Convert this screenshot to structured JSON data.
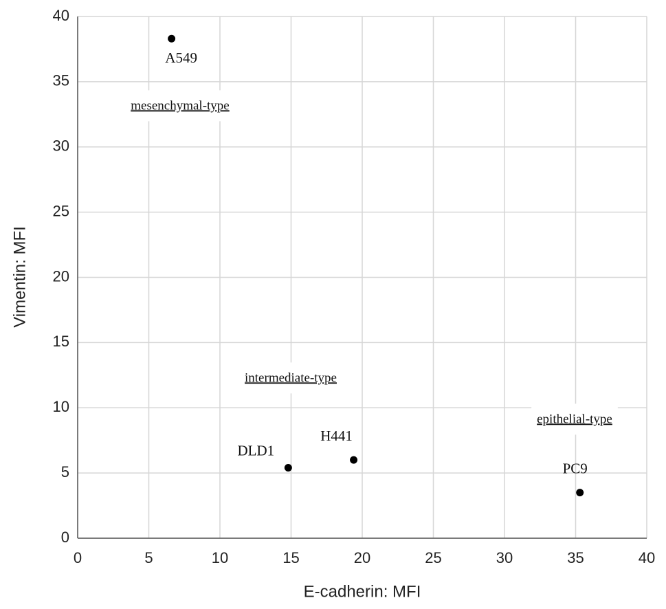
{
  "chart_data": {
    "type": "scatter",
    "x_label": "E-cadherin: MFI",
    "y_label": "Vimentin: MFI",
    "labels": [
      "A549",
      "DLD1",
      "H441",
      "PC9"
    ],
    "x": [
      6.6,
      14.8,
      19.4,
      35.3
    ],
    "values": [
      38.3,
      5.4,
      6.0,
      3.5
    ],
    "color": "#000000",
    "annotations": [
      "mesenchymal-type",
      "intermediate-type",
      "epithelial-type"
    ],
    "xlim": [
      0,
      40
    ],
    "xticks": [
      0,
      5,
      10,
      15,
      20,
      25,
      30,
      35,
      40
    ],
    "ylim": [
      0,
      40
    ],
    "yticks": [
      0,
      5,
      10,
      15,
      20,
      25,
      30,
      35,
      40
    ],
    "grid": true
  }
}
